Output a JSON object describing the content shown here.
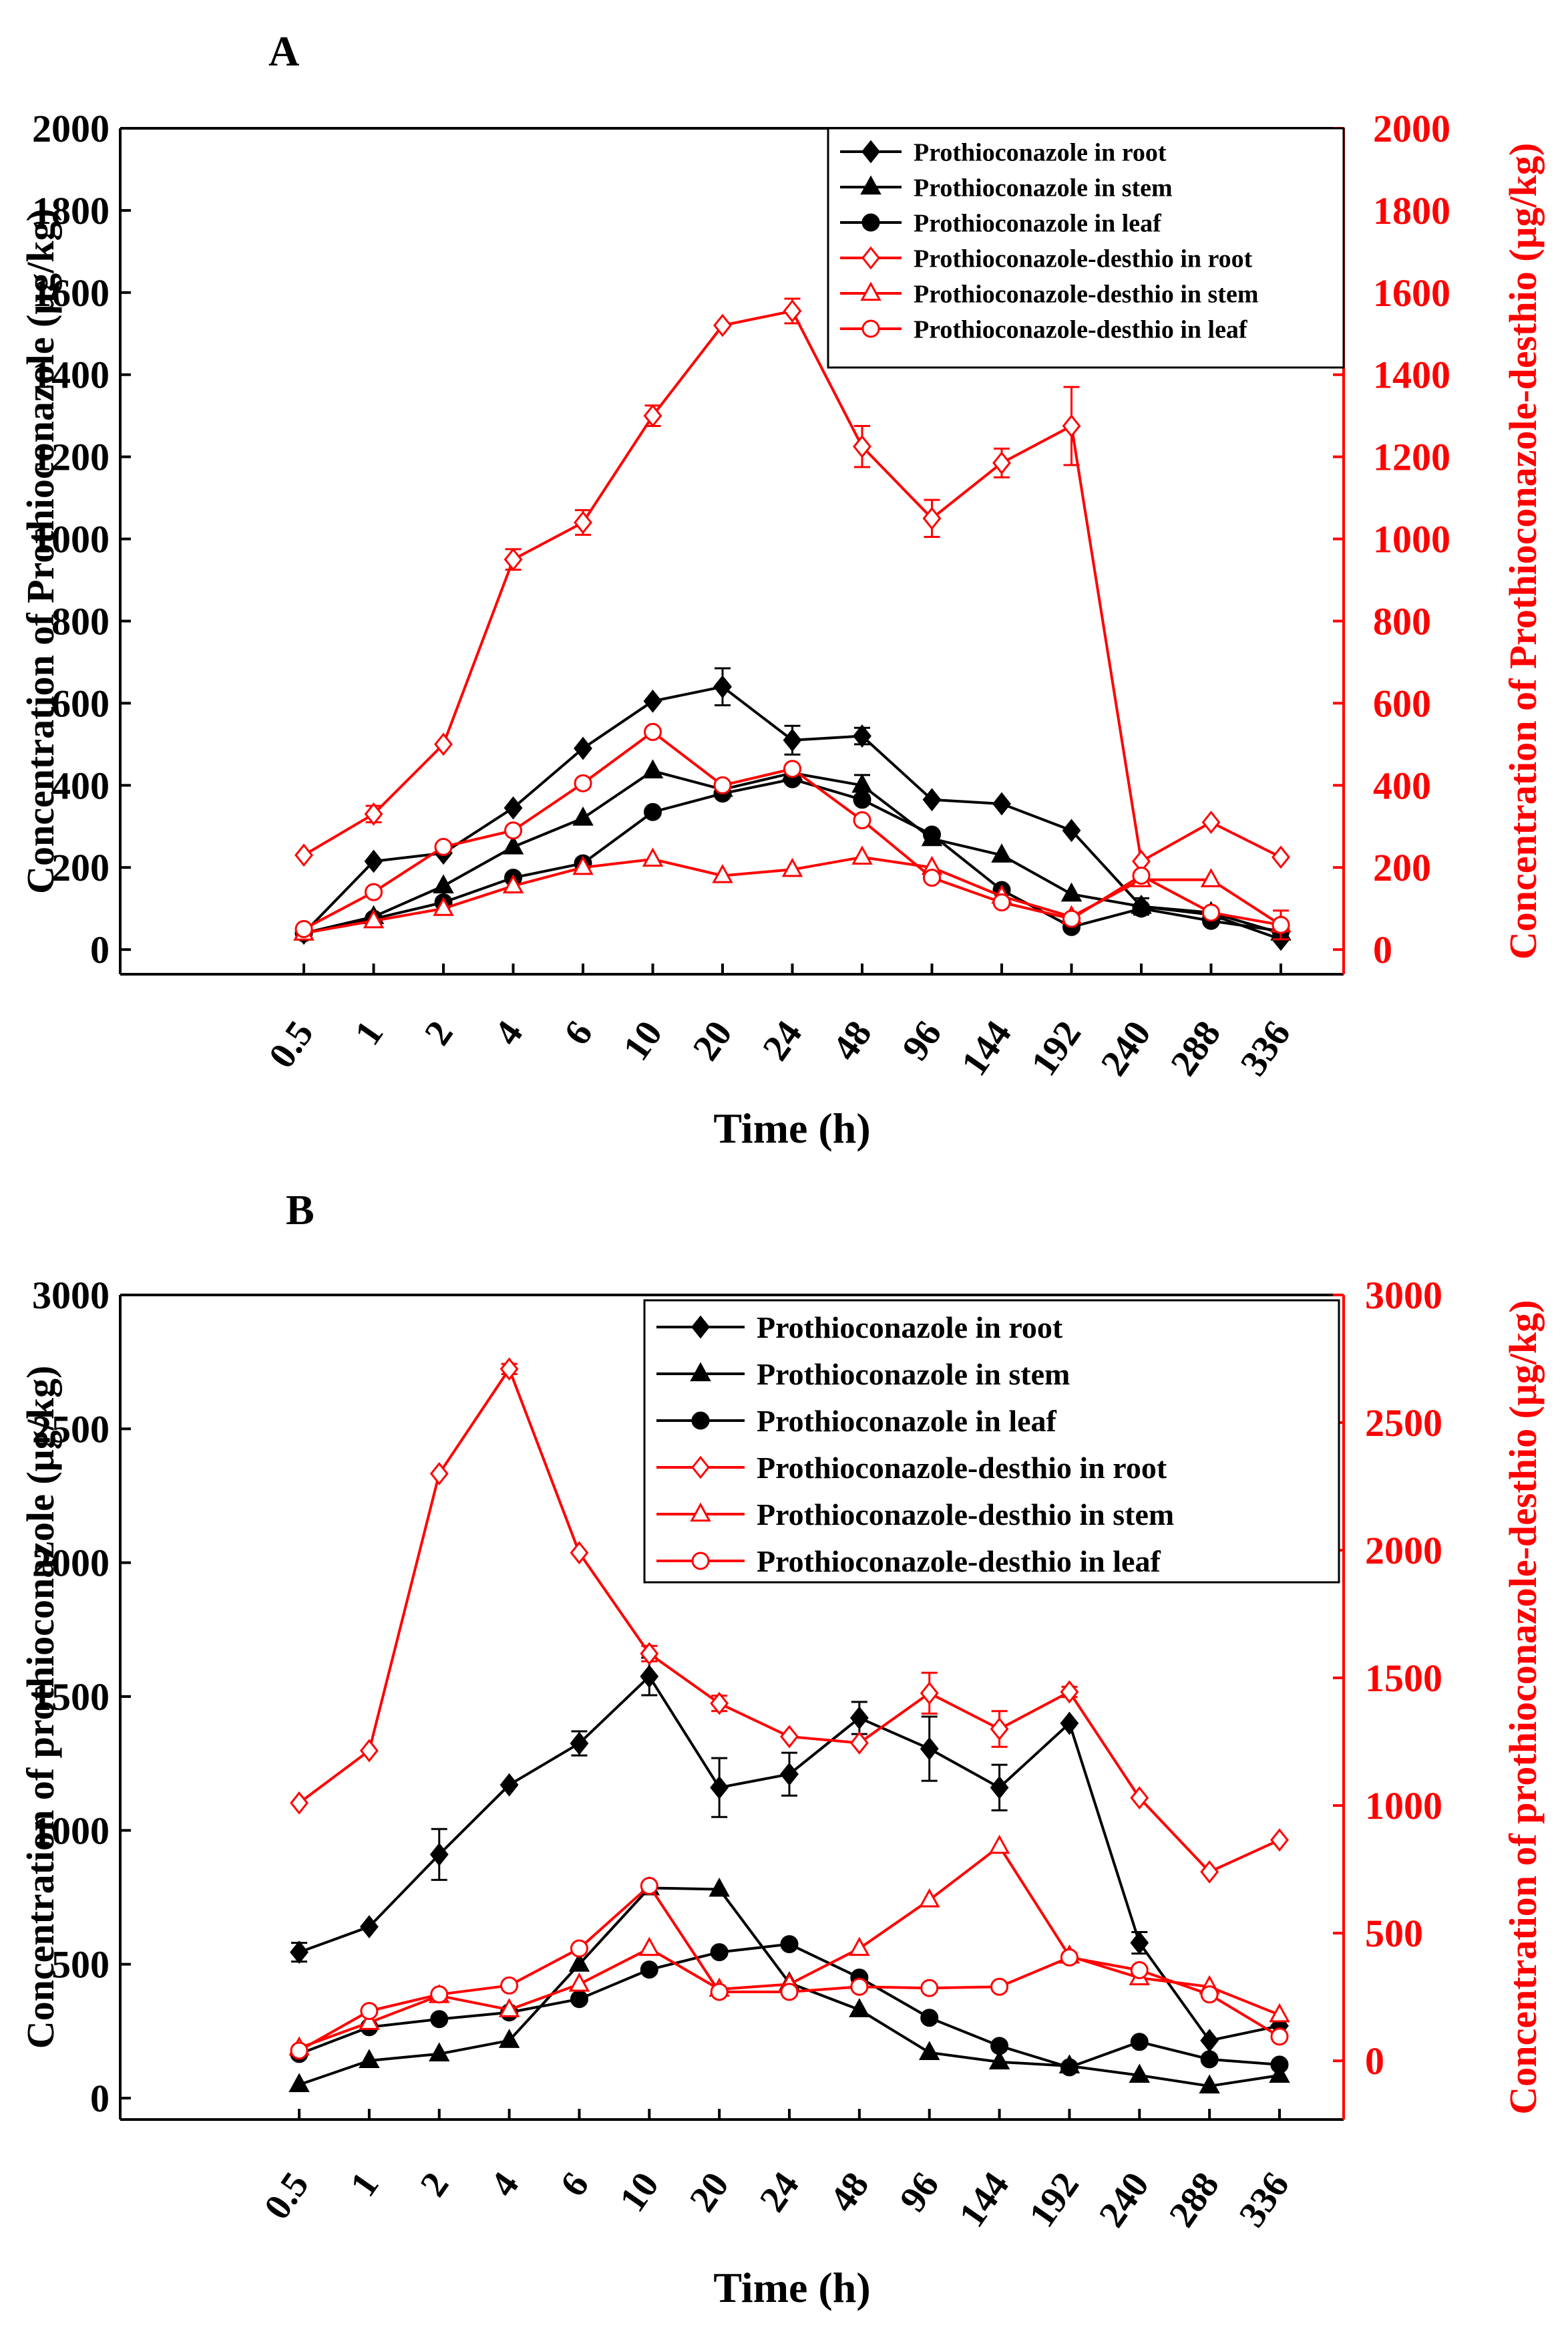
{
  "categories": [
    "0.5",
    "1",
    "2",
    "4",
    "6",
    "10",
    "20",
    "24",
    "48",
    "96",
    "144",
    "192",
    "240",
    "288",
    "336"
  ],
  "colors": {
    "black": "#000000",
    "red": "#ff0000"
  },
  "chart_data": [
    {
      "panel_label": "A",
      "type": "line",
      "xlabel": "Time (h)",
      "ylabel_left": "Concentration of  Prothioconazole (μg/kg)",
      "ylabel_right": "Concentration of  Prothioconazole-desthio (μg/kg)",
      "ylim_left": [
        -60,
        2000
      ],
      "ylim_right": [
        -60,
        2000
      ],
      "yticks_left": [
        0,
        200,
        400,
        600,
        800,
        1000,
        1200,
        1400,
        1600,
        1800,
        2000
      ],
      "yticks_right": [
        0,
        200,
        400,
        600,
        800,
        1000,
        1200,
        1400,
        1600,
        1800,
        2000
      ],
      "legend_position": "top-right",
      "series": [
        {
          "name": "Prothioconazole in root",
          "axis": "left",
          "color": "#000000",
          "marker": "diamond",
          "fill": true,
          "values": [
            40,
            215,
            235,
            345,
            490,
            605,
            640,
            510,
            520,
            365,
            355,
            290,
            105,
            85,
            25
          ],
          "errors": [
            0,
            0,
            0,
            0,
            0,
            0,
            45,
            35,
            20,
            0,
            0,
            0,
            0,
            0,
            0
          ]
        },
        {
          "name": "Prothioconazole in stem",
          "axis": "left",
          "color": "#000000",
          "marker": "triangle",
          "fill": true,
          "values": [
            40,
            80,
            155,
            250,
            320,
            435,
            390,
            430,
            400,
            270,
            230,
            135,
            105,
            90,
            40
          ],
          "errors": [
            0,
            0,
            0,
            0,
            0,
            0,
            0,
            0,
            25,
            0,
            0,
            0,
            20,
            0,
            0
          ]
        },
        {
          "name": "Prothioconazole in leaf",
          "axis": "left",
          "color": "#000000",
          "marker": "circle",
          "fill": true,
          "values": [
            40,
            75,
            115,
            175,
            210,
            335,
            380,
            415,
            365,
            280,
            145,
            55,
            100,
            70,
            45
          ],
          "errors": [
            0,
            0,
            0,
            0,
            0,
            0,
            0,
            0,
            0,
            0,
            0,
            0,
            0,
            0,
            0
          ]
        },
        {
          "name": "Prothioconazole-desthio in root",
          "axis": "right",
          "color": "#ff0000",
          "marker": "diamond",
          "fill": false,
          "values": [
            230,
            330,
            500,
            950,
            1040,
            1300,
            1520,
            1555,
            1225,
            1050,
            1185,
            1275,
            215,
            310,
            225
          ],
          "errors": [
            0,
            20,
            0,
            25,
            30,
            25,
            0,
            30,
            50,
            45,
            35,
            95,
            0,
            0,
            0
          ]
        },
        {
          "name": "Prothioconazole-desthio in stem",
          "axis": "right",
          "color": "#ff0000",
          "marker": "triangle",
          "fill": false,
          "values": [
            40,
            70,
            100,
            155,
            200,
            220,
            180,
            195,
            225,
            200,
            130,
            80,
            170,
            170,
            60
          ],
          "errors": [
            0,
            0,
            0,
            0,
            0,
            0,
            0,
            0,
            0,
            0,
            0,
            0,
            0,
            0,
            0
          ]
        },
        {
          "name": "Prothioconazole-desthio in leaf",
          "axis": "right",
          "color": "#ff0000",
          "marker": "circle",
          "fill": false,
          "values": [
            50,
            140,
            250,
            290,
            405,
            530,
            400,
            440,
            315,
            175,
            115,
            75,
            180,
            90,
            60
          ],
          "errors": [
            0,
            0,
            0,
            0,
            0,
            0,
            0,
            0,
            0,
            0,
            0,
            0,
            0,
            0,
            35
          ]
        }
      ]
    },
    {
      "panel_label": "B",
      "type": "line",
      "xlabel": "Time (h)",
      "ylabel_left": "Concentration of  prothioconazole (μg/kg)",
      "ylabel_right": "Concentration of prothioconazole-desthio (μg/kg)",
      "ylim_left": [
        -80,
        3000
      ],
      "ylim_right": [
        -230,
        3000
      ],
      "yticks_left": [
        0,
        500,
        1000,
        1500,
        2000,
        2500,
        3000
      ],
      "yticks_right": [
        0,
        500,
        1000,
        1500,
        2000,
        2500,
        3000
      ],
      "legend_position": "top-right",
      "series": [
        {
          "name": "Prothioconazole in root",
          "axis": "left",
          "color": "#000000",
          "marker": "diamond",
          "fill": true,
          "values": [
            545,
            640,
            910,
            1170,
            1325,
            1575,
            1160,
            1210,
            1420,
            1305,
            1160,
            1400,
            580,
            215,
            270
          ],
          "errors": [
            35,
            0,
            95,
            0,
            45,
            70,
            110,
            80,
            60,
            120,
            85,
            0,
            40,
            0,
            0
          ]
        },
        {
          "name": "Prothioconazole in stem",
          "axis": "left",
          "color": "#000000",
          "marker": "triangle",
          "fill": true,
          "values": [
            50,
            140,
            165,
            215,
            500,
            785,
            780,
            430,
            330,
            170,
            135,
            120,
            85,
            45,
            85
          ],
          "errors": [
            0,
            0,
            0,
            0,
            0,
            0,
            0,
            0,
            0,
            0,
            0,
            0,
            0,
            0,
            0
          ]
        },
        {
          "name": "Prothioconazole in leaf",
          "axis": "left",
          "color": "#000000",
          "marker": "circle",
          "fill": true,
          "values": [
            165,
            265,
            295,
            320,
            370,
            480,
            545,
            575,
            450,
            300,
            195,
            115,
            210,
            145,
            125
          ],
          "errors": [
            0,
            0,
            0,
            0,
            0,
            0,
            0,
            0,
            0,
            0,
            0,
            0,
            0,
            0,
            0
          ]
        },
        {
          "name": "Prothioconazole-desthio in root",
          "axis": "right",
          "color": "#ff0000",
          "marker": "diamond",
          "fill": false,
          "values": [
            1010,
            1215,
            2300,
            2710,
            1990,
            1595,
            1400,
            1270,
            1245,
            1440,
            1300,
            1445,
            1030,
            740,
            865
          ],
          "errors": [
            0,
            0,
            0,
            20,
            0,
            30,
            30,
            0,
            0,
            80,
            70,
            20,
            0,
            0,
            0
          ]
        },
        {
          "name": "Prothioconazole-desthio in stem",
          "axis": "right",
          "color": "#ff0000",
          "marker": "triangle",
          "fill": false,
          "values": [
            50,
            150,
            255,
            200,
            300,
            440,
            280,
            300,
            440,
            630,
            840,
            410,
            325,
            290,
            180
          ],
          "errors": [
            0,
            0,
            0,
            0,
            0,
            0,
            0,
            0,
            0,
            0,
            0,
            0,
            0,
            0,
            0
          ]
        },
        {
          "name": "Prothioconazole-desthio in leaf",
          "axis": "right",
          "color": "#ff0000",
          "marker": "circle",
          "fill": false,
          "values": [
            40,
            195,
            260,
            295,
            440,
            685,
            270,
            270,
            290,
            285,
            290,
            405,
            355,
            260,
            95
          ],
          "errors": [
            0,
            0,
            0,
            0,
            0,
            0,
            0,
            0,
            0,
            0,
            0,
            0,
            0,
            0,
            0
          ]
        }
      ]
    }
  ]
}
